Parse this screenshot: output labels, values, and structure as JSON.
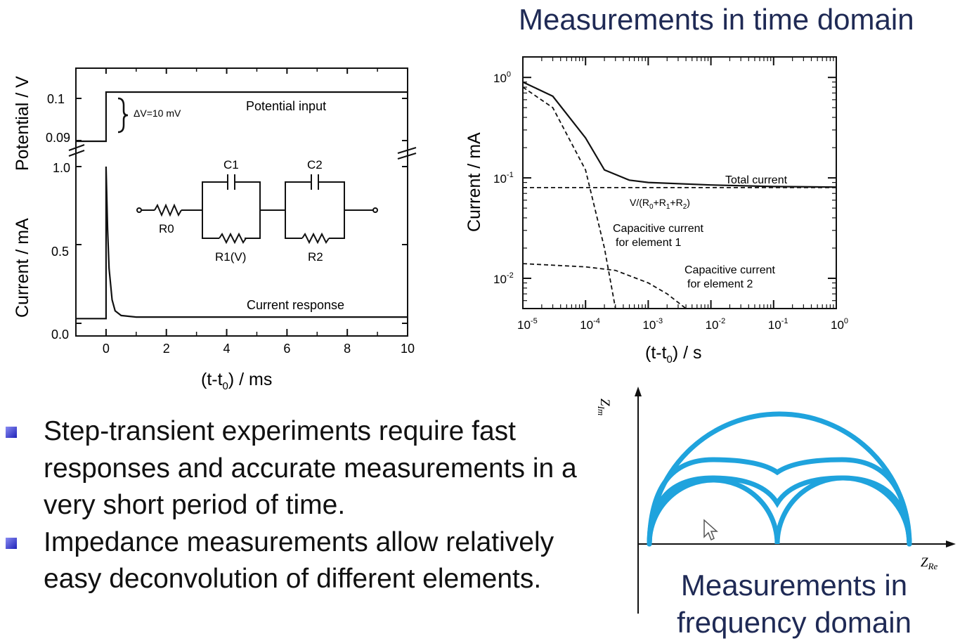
{
  "slide": {
    "title_time_domain": "Measurements in time domain",
    "title_frequency_domain": "Measurements in frequency domain",
    "bullets": [
      "Step-transient experiments require fast responses and accurate measurements in a very short period of time.",
      "Impedance measurements allow relatively easy deconvolution of different elements."
    ]
  },
  "chart_data": [
    {
      "type": "line",
      "xlabel": "(t-t0) / ms",
      "ylabel_top": "Potential / V",
      "ylabel_bottom": "Current / mA",
      "xlim": [
        -1,
        10
      ],
      "x_ticks": [
        "0",
        "2",
        "4",
        "6",
        "8",
        "10"
      ],
      "y_ticks_potential": [
        "0.1",
        "0.09"
      ],
      "y_ticks_current": [
        "1.0",
        "0.5",
        "0.0"
      ],
      "annotations": [
        "ΔV=10 mV",
        "Potential input",
        "Current response"
      ],
      "circuit_labels": [
        "R0",
        "C1",
        "R1(V)",
        "C2",
        "R2"
      ],
      "series": [
        {
          "name": "Potential input",
          "x": [
            -1,
            0,
            0,
            10
          ],
          "y": [
            0.09,
            0.09,
            0.1,
            0.1
          ]
        },
        {
          "name": "Current response",
          "x": [
            -1,
            0,
            0,
            0.05,
            0.1,
            0.2,
            0.3,
            0.5,
            1,
            10
          ],
          "y": [
            0.03,
            0.03,
            1.0,
            0.6,
            0.35,
            0.15,
            0.08,
            0.05,
            0.04,
            0.04
          ]
        }
      ]
    },
    {
      "type": "line",
      "xscale": "log",
      "yscale": "log",
      "xlabel": "(t-t0) / s",
      "ylabel": "Current / mA",
      "xlim": [
        1e-05,
        1
      ],
      "ylim": [
        0.005,
        1.6
      ],
      "x_ticks": [
        "10-5",
        "10-4",
        "10-3",
        "10-2",
        "10-1",
        "100"
      ],
      "y_ticks": [
        "100",
        "10-1",
        "10-2"
      ],
      "annotations": [
        "Total current",
        "V/(R0+R1+R2)",
        "Capacitive current for element 1",
        "Capacitive current for element 2"
      ],
      "series": [
        {
          "name": "Total current",
          "x": [
            1e-05,
            3e-05,
            0.0001,
            0.0002,
            0.0005,
            0.001,
            0.01,
            0.1,
            1
          ],
          "y": [
            0.9,
            0.65,
            0.25,
            0.12,
            0.095,
            0.09,
            0.085,
            0.082,
            0.081
          ]
        },
        {
          "name": "V/(R0+R1+R2)",
          "x": [
            1e-05,
            1
          ],
          "y": [
            0.08,
            0.08
          ]
        },
        {
          "name": "Capacitive current for element 1",
          "x": [
            1e-05,
            3e-05,
            0.0001,
            0.0002,
            0.0003
          ],
          "y": [
            0.8,
            0.5,
            0.12,
            0.02,
            0.005
          ]
        },
        {
          "name": "Capacitive current for element 2",
          "x": [
            1e-05,
            0.0001,
            0.0003,
            0.001,
            0.002,
            0.004
          ],
          "y": [
            0.014,
            0.013,
            0.012,
            0.009,
            0.007,
            0.005
          ]
        }
      ]
    },
    {
      "type": "line",
      "xlabel": "ZRe",
      "ylabel": "ZIm",
      "series": [
        {
          "name": "",
          "shape": "single large semicircle"
        },
        {
          "name": "",
          "shape": "two overlapping semicircles"
        },
        {
          "name": "",
          "shape": "two partially separated semicircles"
        },
        {
          "name": "",
          "shape": "two separated semicircles"
        }
      ],
      "line_color": "#1fa3dd"
    }
  ]
}
